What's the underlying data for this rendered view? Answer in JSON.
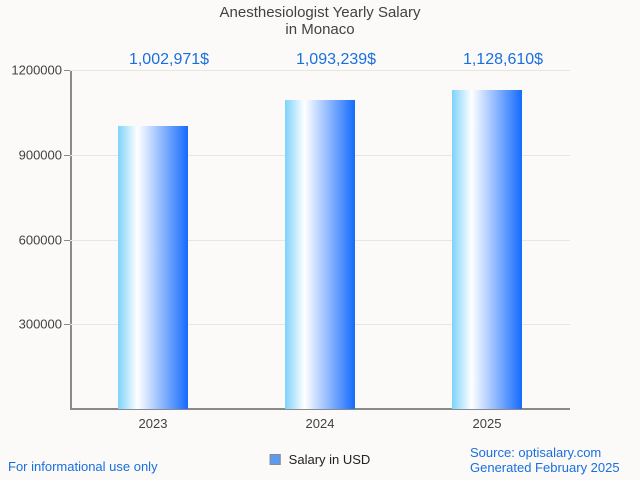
{
  "title": {
    "line1": "Anesthesiologist Yearly Salary",
    "line2": "in Monaco"
  },
  "chart_data": {
    "type": "bar",
    "title": "Anesthesiologist Yearly Salary in Monaco",
    "categories": [
      "2023",
      "2024",
      "2025"
    ],
    "values": [
      1002971,
      1093239,
      1128610
    ],
    "value_labels": [
      "1,002,971$",
      "1,093,239$",
      "1,128,610$"
    ],
    "series_name": "Salary in USD",
    "xlabel": "",
    "ylabel": "",
    "ylim": [
      0,
      1200000
    ],
    "yticks": [
      300000,
      600000,
      900000,
      1200000
    ],
    "grid": true,
    "legend_position": "bottom-center"
  },
  "legend": {
    "label": "Salary in USD",
    "swatch_color": "#5f9af1"
  },
  "footer": {
    "disclaimer": "For informational use only",
    "source_line1": "Source: optisalary.com",
    "source_line2": "Generated February 2025"
  },
  "colors": {
    "background": "#fbfaf8",
    "accent_text": "#1a6fe0",
    "title_text": "#424242",
    "axis": "#8a8a8a",
    "gridline": "#e8e6e2",
    "bar_gradient_left": "#7ed2fb",
    "bar_gradient_mid": "#ffffff",
    "bar_gradient_right": "#146bfe",
    "legend_swatch": "#5f9af1"
  }
}
